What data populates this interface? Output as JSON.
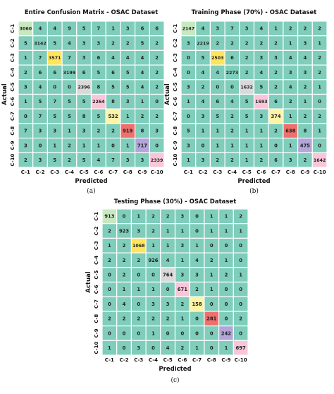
{
  "chart_data": [
    {
      "type": "heatmap",
      "title": "Entire Confusion Matrix - OSAC Dataset",
      "xlabel": "Predicted",
      "ylabel": "Actual",
      "caption": "(a)",
      "labels": [
        "C-1",
        "C-2",
        "C-3",
        "C-4",
        "C-5",
        "C-6",
        "C-7",
        "C-8",
        "C-9",
        "C-10"
      ],
      "matrix": [
        [
          3060,
          4,
          4,
          9,
          5,
          7,
          1,
          3,
          6,
          6
        ],
        [
          5,
          3142,
          5,
          4,
          3,
          3,
          2,
          2,
          5,
          2
        ],
        [
          1,
          7,
          3571,
          7,
          3,
          6,
          4,
          4,
          4,
          2
        ],
        [
          2,
          6,
          6,
          3199,
          6,
          5,
          6,
          5,
          4,
          2
        ],
        [
          3,
          4,
          0,
          0,
          2396,
          8,
          5,
          5,
          4,
          2
        ],
        [
          1,
          5,
          7,
          5,
          5,
          2264,
          8,
          3,
          1,
          0
        ],
        [
          0,
          7,
          5,
          5,
          8,
          5,
          532,
          1,
          2,
          2
        ],
        [
          7,
          3,
          3,
          1,
          3,
          2,
          2,
          919,
          8,
          3
        ],
        [
          3,
          0,
          1,
          2,
          1,
          1,
          0,
          1,
          717,
          0
        ],
        [
          2,
          3,
          5,
          2,
          5,
          4,
          7,
          3,
          3,
          2339
        ]
      ],
      "colors": [
        "#3a3a3a",
        "#3a3a3a",
        "#3a3a3a",
        "#3a3a3a",
        "#3a3a3a",
        "#3a3a3a",
        "#3a3a3a",
        "#3a3a3a",
        "#3a3a3a",
        "#3a3a3a"
      ]
    },
    {
      "type": "heatmap",
      "title": "Training Phase (70%) - OSAC Dataset",
      "xlabel": "Predicted",
      "ylabel": "Actual",
      "caption": "(b)",
      "labels": [
        "C-1",
        "C-2",
        "C-3",
        "C-4",
        "C-5",
        "C-6",
        "C-7",
        "C-8",
        "C-9",
        "C-10"
      ],
      "matrix": [
        [
          2147,
          4,
          3,
          7,
          3,
          4,
          1,
          2,
          2,
          2
        ],
        [
          3,
          2219,
          2,
          2,
          2,
          2,
          2,
          1,
          3,
          1
        ],
        [
          0,
          5,
          2503,
          6,
          2,
          3,
          3,
          4,
          4,
          2
        ],
        [
          0,
          4,
          4,
          2273,
          2,
          4,
          2,
          3,
          3,
          2
        ],
        [
          3,
          2,
          0,
          0,
          1632,
          5,
          2,
          4,
          2,
          1
        ],
        [
          1,
          4,
          6,
          4,
          5,
          1593,
          6,
          2,
          1,
          0
        ],
        [
          0,
          3,
          5,
          2,
          5,
          3,
          374,
          1,
          2,
          2
        ],
        [
          5,
          1,
          1,
          2,
          1,
          1,
          2,
          638,
          8,
          1
        ],
        [
          3,
          0,
          1,
          1,
          1,
          1,
          0,
          1,
          475,
          0
        ],
        [
          1,
          3,
          2,
          2,
          1,
          2,
          6,
          3,
          2,
          1642
        ]
      ],
      "colors": [
        "#3a3a3a",
        "#3a3a3a",
        "#3a3a3a",
        "#3a3a3a",
        "#3a3a3a",
        "#3a3a3a",
        "#3a3a3a",
        "#3a3a3a",
        "#3a3a3a",
        "#3a3a3a"
      ]
    },
    {
      "type": "heatmap",
      "title": "Testing Phase (30%) - OSAC Dataset",
      "xlabel": "Predicted",
      "ylabel": "Actual",
      "caption": "(c)",
      "labels": [
        "C-1",
        "C-2",
        "C-3",
        "C-4",
        "C-5",
        "C-6",
        "C-7",
        "C-8",
        "C-9",
        "C-10"
      ],
      "matrix": [
        [
          913,
          0,
          1,
          2,
          2,
          3,
          0,
          1,
          1,
          2
        ],
        [
          2,
          923,
          3,
          2,
          1,
          1,
          0,
          1,
          1,
          1
        ],
        [
          1,
          2,
          1068,
          1,
          1,
          3,
          1,
          0,
          0,
          0
        ],
        [
          2,
          2,
          2,
          926,
          4,
          1,
          4,
          2,
          1,
          0
        ],
        [
          0,
          2,
          0,
          0,
          764,
          3,
          3,
          1,
          2,
          1
        ],
        [
          0,
          1,
          1,
          1,
          0,
          671,
          2,
          1,
          0,
          0
        ],
        [
          0,
          4,
          0,
          3,
          3,
          2,
          158,
          0,
          0,
          0
        ],
        [
          2,
          2,
          2,
          2,
          2,
          1,
          0,
          281,
          0,
          2
        ],
        [
          0,
          0,
          0,
          1,
          0,
          0,
          0,
          0,
          242,
          0
        ],
        [
          1,
          0,
          3,
          0,
          4,
          2,
          1,
          0,
          1,
          697
        ]
      ],
      "colors": [
        "#3a3a3a",
        "#3a3a3a",
        "#3a3a3a",
        "#3a3a3a",
        "#3a3a3a",
        "#3a3a3a",
        "#3a3a3a",
        "#3a3a3a",
        "#3a3a3a",
        "#3a3a3a"
      ]
    }
  ],
  "palette": {
    "base": "#7fcdbb",
    "diagonal": [
      "#c7e9c0",
      "#7fcdbb",
      "#ffe45e",
      "#7fcdbb",
      "#d9d9d9",
      "#f9c6d9",
      "#fff3a6",
      "#ef6f6c",
      "#b3a4d9",
      "#f9c6d9"
    ]
  }
}
